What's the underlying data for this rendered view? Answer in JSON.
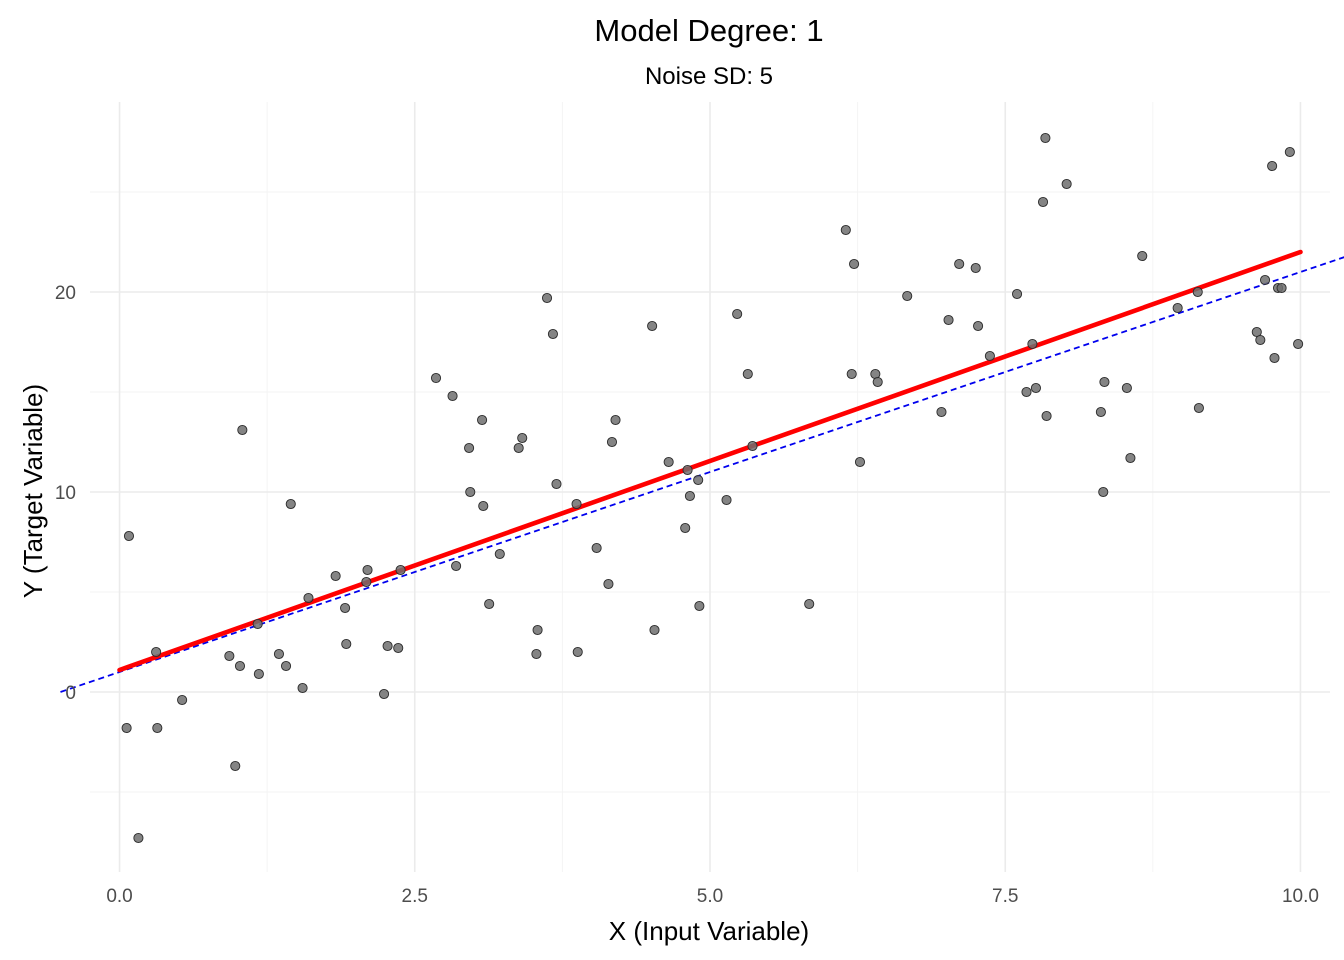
{
  "chart_data": {
    "type": "scatter",
    "title": "Model Degree: 1",
    "subtitle": "Noise SD: 5",
    "xlabel": "X (Input Variable)",
    "ylabel": "Y (Target Variable)",
    "xlim": [
      -0.25,
      10.25
    ],
    "ylim": [
      -9.0,
      29.5
    ],
    "x_ticks": [
      0.0,
      2.5,
      5.0,
      7.5,
      10.0
    ],
    "x_tick_labels": [
      "0.0",
      "2.5",
      "5.0",
      "7.5",
      "10.0"
    ],
    "y_ticks": [
      0,
      10,
      20
    ],
    "y_tick_labels": [
      "0",
      "10",
      "20"
    ],
    "x_minor": [
      1.25,
      3.75,
      6.25,
      8.75
    ],
    "y_minor": [
      -5,
      5,
      15,
      25
    ],
    "grid": true,
    "legend": "none",
    "colors": {
      "points": "#6e6e6e",
      "fit": "#ff0000",
      "true": "#0000ee"
    },
    "series": [
      {
        "kind": "points",
        "x": [
          0.06,
          0.08,
          0.16,
          0.31,
          0.32,
          0.53,
          0.93,
          0.98,
          1.02,
          1.04,
          1.17,
          1.18,
          1.35,
          1.41,
          1.45,
          1.55,
          1.6,
          1.83,
          1.91,
          1.92,
          2.09,
          2.1,
          2.24,
          2.27,
          2.36,
          2.38,
          2.68,
          2.82,
          2.85,
          2.96,
          2.97,
          3.07,
          3.08,
          3.13,
          3.22,
          3.38,
          3.41,
          3.53,
          3.54,
          3.62,
          3.67,
          3.7,
          3.87,
          3.88,
          4.04,
          4.14,
          4.17,
          4.2,
          4.51,
          4.53,
          4.65,
          4.79,
          4.81,
          4.83,
          4.9,
          4.91,
          5.14,
          5.23,
          5.32,
          5.36,
          5.84,
          6.15,
          6.2,
          6.22,
          6.27,
          6.4,
          6.42,
          6.67,
          6.96,
          7.02,
          7.11,
          7.25,
          7.27,
          7.37,
          7.6,
          7.68,
          7.73,
          7.76,
          7.82,
          7.84,
          7.85,
          8.02,
          8.31,
          8.33,
          8.34,
          8.53,
          8.56,
          8.66,
          8.96,
          9.13,
          9.14,
          9.63,
          9.66,
          9.7,
          9.76,
          9.78,
          9.81,
          9.84,
          9.91,
          9.98
        ],
        "y": [
          -1.8,
          7.8,
          -7.3,
          2.0,
          -1.8,
          -0.4,
          1.8,
          -3.7,
          1.3,
          13.1,
          3.4,
          0.9,
          1.9,
          1.3,
          9.4,
          0.2,
          4.7,
          5.8,
          4.2,
          2.4,
          5.5,
          6.1,
          -0.1,
          2.3,
          2.2,
          6.1,
          15.7,
          14.8,
          6.3,
          12.2,
          10.0,
          13.6,
          9.3,
          4.4,
          6.9,
          12.2,
          12.7,
          1.9,
          3.1,
          19.7,
          17.9,
          10.4,
          9.4,
          2.0,
          7.2,
          5.4,
          12.5,
          13.6,
          18.3,
          3.1,
          11.5,
          8.2,
          11.1,
          9.8,
          10.6,
          4.3,
          9.6,
          18.9,
          15.9,
          12.3,
          4.4,
          23.1,
          15.9,
          21.4,
          11.5,
          15.9,
          15.5,
          19.8,
          14.0,
          18.6,
          21.4,
          21.2,
          18.3,
          16.8,
          19.9,
          15.0,
          17.4,
          15.2,
          24.5,
          27.7,
          13.8,
          25.4,
          14.0,
          10.0,
          15.5,
          15.2,
          11.7,
          21.8,
          19.2,
          20.0,
          14.2,
          18.0,
          17.6,
          20.6,
          26.3,
          16.7,
          20.2,
          20.2,
          27.0,
          17.4
        ]
      },
      {
        "kind": "fit-line",
        "x": [
          0.0,
          10.0
        ],
        "y": [
          1.1,
          22.0
        ]
      },
      {
        "kind": "true-line",
        "x": [
          -0.5,
          10.5
        ],
        "y": [
          0.0,
          22.0
        ]
      }
    ]
  }
}
